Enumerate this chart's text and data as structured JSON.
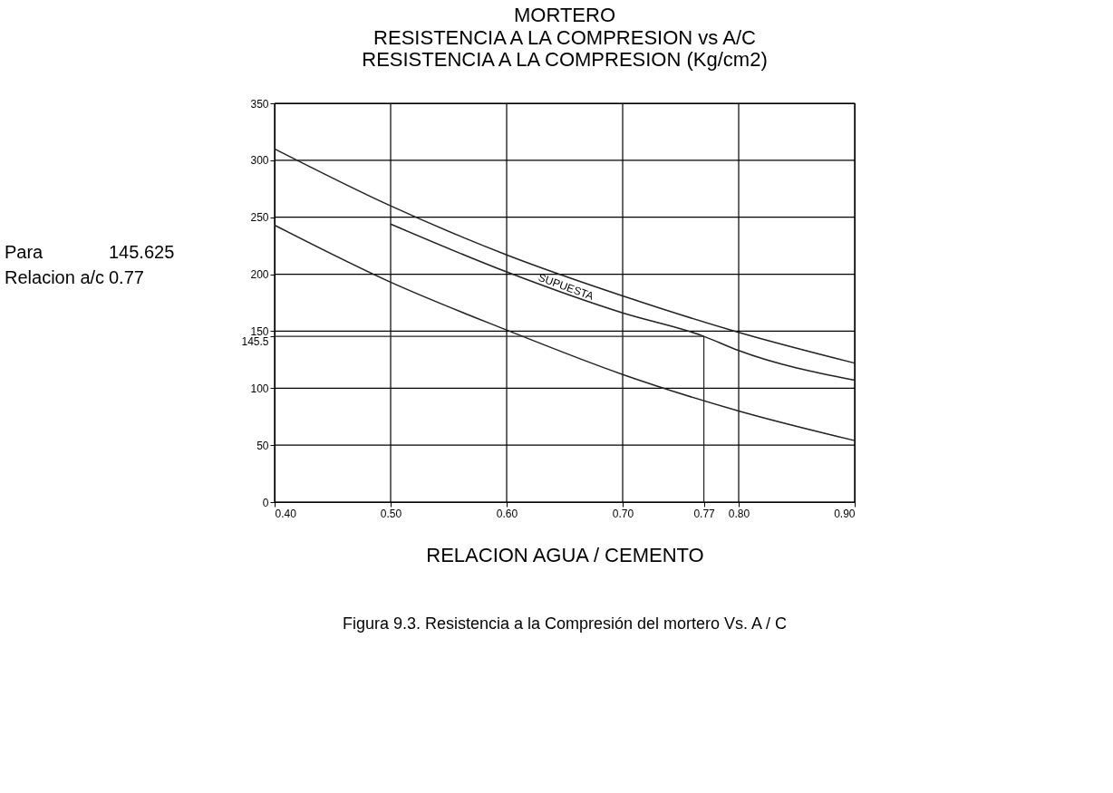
{
  "chart_data": {
    "type": "line",
    "title": "MORTERO",
    "subtitle": "RESISTENCIA A LA COMPRESION vs A/C",
    "ylabel": "RESISTENCIA A LA COMPRESION  (Kg/cm2)",
    "xlabel": "RELACION AGUA / CEMENTO",
    "xlim": [
      0.4,
      0.9
    ],
    "ylim": [
      0,
      350
    ],
    "xticks": [
      {
        "value": 0.4,
        "label": "0.40"
      },
      {
        "value": 0.5,
        "label": "0.50"
      },
      {
        "value": 0.6,
        "label": "0.60"
      },
      {
        "value": 0.7,
        "label": "0.70"
      },
      0.77,
      {
        "value": 0.8,
        "label": "0.80"
      },
      {
        "value": 0.9,
        "label": "0.90"
      }
    ],
    "yticks": [
      0,
      50,
      100,
      145.5,
      150,
      200,
      250,
      300,
      350
    ],
    "grid": true,
    "marker": "none",
    "line_style": "solid",
    "series": [
      {
        "color": "#222222",
        "x": [
          0.4,
          0.5,
          0.6,
          0.7,
          0.8,
          0.9
        ],
        "values": [
          310,
          260,
          217,
          181,
          149,
          122
        ]
      },
      {
        "color": "#222222",
        "x": [
          0.5,
          0.6,
          0.7,
          0.77,
          0.8,
          0.9
        ],
        "values": [
          244,
          202,
          166,
          145.5,
          133,
          107
        ]
      },
      {
        "color": "#222222",
        "x": [
          0.4,
          0.5,
          0.6,
          0.7,
          0.8,
          0.9
        ],
        "values": [
          243,
          193,
          151,
          112,
          80,
          54
        ]
      }
    ],
    "ref_lines": [
      {
        "axis": "y",
        "value": 145.5,
        "color": "#222222"
      },
      {
        "axis": "x",
        "value": 0.77,
        "color": "#222222"
      }
    ],
    "annotations": [
      {
        "text": "SUPUESTA",
        "x": 0.65,
        "y": 186
      },
      "Para",
      "145.625",
      "Relacion a/c",
      "0.77",
      "Figura 9.3. Resistencia a la Compresión del mortero Vs. A / C"
    ]
  }
}
